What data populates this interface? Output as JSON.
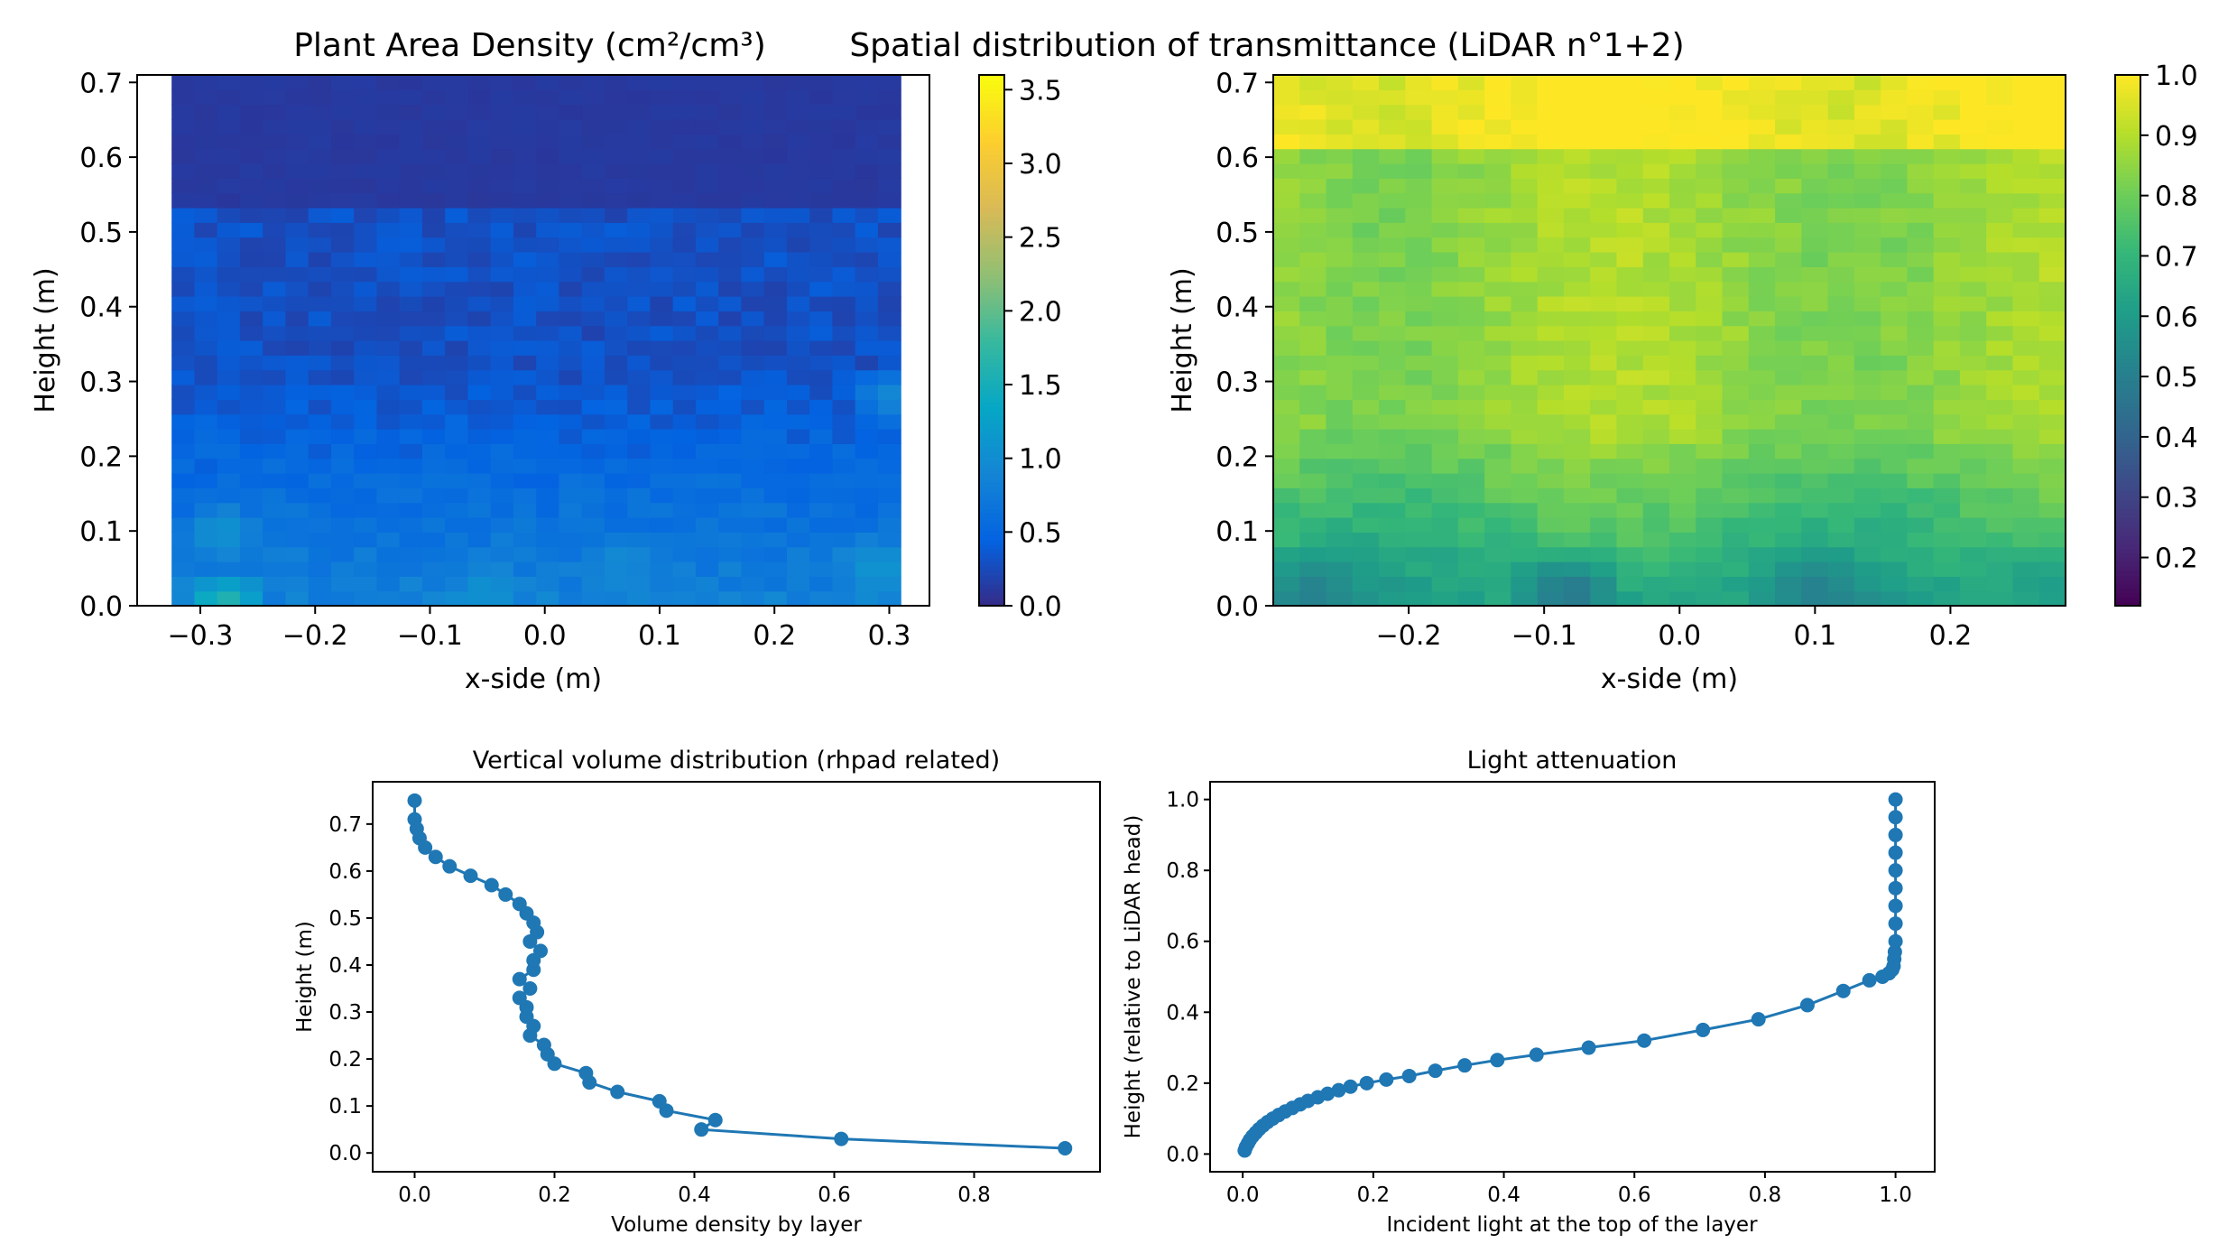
{
  "figure": {
    "description_free": true
  },
  "chart_data": [
    {
      "type": "heatmap",
      "title": "Plant Area Density (cm²/cm³)",
      "xlabel": "x-side (m)",
      "ylabel": "Height (m)",
      "xlim": [
        -0.355,
        0.335
      ],
      "ylim": [
        0.0,
        0.71
      ],
      "data_extent_x": [
        -0.325,
        0.31
      ],
      "data_extent_y": [
        0.0,
        0.71
      ],
      "grid": {
        "cols": 32,
        "rows": 36
      },
      "xticks": [
        -0.3,
        -0.2,
        -0.1,
        0.0,
        0.1,
        0.2,
        0.3
      ],
      "xtick_labels": [
        "−0.3",
        "−0.2",
        "−0.1",
        "0.0",
        "0.1",
        "0.2",
        "0.3"
      ],
      "yticks": [
        0.0,
        0.1,
        0.2,
        0.3,
        0.4,
        0.5,
        0.6,
        0.7
      ],
      "ytick_labels": [
        "0.0",
        "0.1",
        "0.2",
        "0.3",
        "0.4",
        "0.5",
        "0.6",
        "0.7"
      ],
      "colorbar": {
        "colormap": "parula",
        "range": [
          0.0,
          3.6
        ],
        "ticks": [
          0.0,
          0.5,
          1.0,
          1.5,
          2.0,
          2.5,
          3.0,
          3.5
        ],
        "tick_labels": [
          "0.0",
          "0.5",
          "1.0",
          "1.5",
          "2.0",
          "2.5",
          "3.0",
          "3.5"
        ]
      },
      "value_profile": {
        "top_value": 0.12,
        "mid_value": 0.3,
        "bottom_value": 0.85,
        "hotspots": [
          {
            "x": -0.28,
            "y": 0.005,
            "value": 1.7
          },
          {
            "x": -0.28,
            "y": 0.1,
            "value": 1.1
          },
          {
            "x": 0.29,
            "y": 0.05,
            "value": 1.2
          },
          {
            "x": 0.3,
            "y": 0.28,
            "value": 1.0
          },
          {
            "x": 0.07,
            "y": 0.06,
            "value": 1.0
          },
          {
            "x": -0.05,
            "y": 0.02,
            "value": 1.1
          }
        ]
      }
    },
    {
      "type": "heatmap",
      "title": "Spatial distribution of transmittance (LiDAR n°1+2)",
      "xlabel": "x-side (m)",
      "ylabel": "Height (m)",
      "xlim": [
        -0.3,
        0.285
      ],
      "ylim": [
        0.0,
        0.71
      ],
      "grid": {
        "cols": 30,
        "rows": 36
      },
      "xticks": [
        -0.2,
        -0.1,
        0.0,
        0.1,
        0.2
      ],
      "xtick_labels": [
        "−0.2",
        "−0.1",
        "0.0",
        "0.1",
        "0.2"
      ],
      "yticks": [
        0.0,
        0.1,
        0.2,
        0.3,
        0.4,
        0.5,
        0.6,
        0.7
      ],
      "ytick_labels": [
        "0.0",
        "0.1",
        "0.2",
        "0.3",
        "0.4",
        "0.5",
        "0.6",
        "0.7"
      ],
      "colorbar": {
        "colormap": "viridis",
        "range": [
          0.12,
          1.0
        ],
        "ticks": [
          0.2,
          0.3,
          0.4,
          0.5,
          0.6,
          0.7,
          0.8,
          0.9,
          1.0
        ],
        "tick_labels": [
          "0.2",
          "0.3",
          "0.4",
          "0.5",
          "0.6",
          "0.7",
          "0.8",
          "0.9",
          "1.0"
        ]
      },
      "value_profile": {
        "top_value": 0.99,
        "mid_value": 0.86,
        "bottom_value": 0.62,
        "lowspots": [
          {
            "x": -0.27,
            "y": 0.02,
            "value": 0.5
          },
          {
            "x": -0.08,
            "y": 0.02,
            "value": 0.45
          },
          {
            "x": 0.1,
            "y": 0.02,
            "value": 0.5
          },
          {
            "x": 0.27,
            "y": 0.03,
            "value": 0.6
          }
        ]
      }
    },
    {
      "type": "line",
      "title": "Vertical volume distribution (rhpad related)",
      "xlabel": "Volume density by layer",
      "ylabel": "Height (m)",
      "xlim": [
        -0.06,
        0.98
      ],
      "ylim": [
        -0.04,
        0.79
      ],
      "xticks": [
        0.0,
        0.2,
        0.4,
        0.6,
        0.8
      ],
      "xtick_labels": [
        "0.0",
        "0.2",
        "0.4",
        "0.6",
        "0.8"
      ],
      "yticks": [
        0.0,
        0.1,
        0.2,
        0.3,
        0.4,
        0.5,
        0.6,
        0.7
      ],
      "ytick_labels": [
        "0.0",
        "0.1",
        "0.2",
        "0.3",
        "0.4",
        "0.5",
        "0.6",
        "0.7"
      ],
      "series": [
        {
          "name": "volume density",
          "color": "#1f77b4",
          "x": [
            0.93,
            0.61,
            0.41,
            0.43,
            0.36,
            0.35,
            0.29,
            0.25,
            0.245,
            0.2,
            0.19,
            0.185,
            0.165,
            0.17,
            0.16,
            0.16,
            0.15,
            0.165,
            0.15,
            0.17,
            0.17,
            0.18,
            0.165,
            0.175,
            0.17,
            0.16,
            0.15,
            0.13,
            0.11,
            0.08,
            0.05,
            0.03,
            0.015,
            0.007,
            0.003,
            0.0,
            0.0
          ],
          "y": [
            0.01,
            0.03,
            0.05,
            0.07,
            0.09,
            0.11,
            0.13,
            0.15,
            0.17,
            0.19,
            0.21,
            0.23,
            0.25,
            0.27,
            0.29,
            0.31,
            0.33,
            0.35,
            0.37,
            0.39,
            0.41,
            0.43,
            0.45,
            0.47,
            0.49,
            0.51,
            0.53,
            0.55,
            0.57,
            0.59,
            0.61,
            0.63,
            0.65,
            0.67,
            0.69,
            0.71,
            0.75
          ]
        }
      ]
    },
    {
      "type": "line",
      "title": "Light attenuation",
      "xlabel": "Incident light at the top of the layer",
      "ylabel": "Height (relative to LiDAR head)",
      "xlim": [
        -0.05,
        1.06
      ],
      "ylim": [
        -0.05,
        1.05
      ],
      "xticks": [
        0.0,
        0.2,
        0.4,
        0.6,
        0.8,
        1.0
      ],
      "xtick_labels": [
        "0.0",
        "0.2",
        "0.4",
        "0.6",
        "0.8",
        "1.0"
      ],
      "yticks": [
        0.0,
        0.2,
        0.4,
        0.6,
        0.8,
        1.0
      ],
      "ytick_labels": [
        "0.0",
        "0.2",
        "0.4",
        "0.6",
        "0.8",
        "1.0"
      ],
      "series": [
        {
          "name": "incident light",
          "color": "#1f77b4",
          "x": [
            0.003,
            0.005,
            0.008,
            0.011,
            0.015,
            0.02,
            0.025,
            0.031,
            0.038,
            0.046,
            0.055,
            0.065,
            0.076,
            0.088,
            0.1,
            0.115,
            0.13,
            0.147,
            0.165,
            0.19,
            0.22,
            0.255,
            0.295,
            0.34,
            0.39,
            0.45,
            0.53,
            0.615,
            0.705,
            0.79,
            0.865,
            0.92,
            0.96,
            0.98,
            0.99,
            0.995,
            0.997,
            0.998,
            0.999,
            1.0,
            1.0,
            1.0,
            1.0,
            1.0,
            1.0,
            1.0,
            1.0,
            1.0
          ],
          "y": [
            0.01,
            0.02,
            0.03,
            0.04,
            0.05,
            0.06,
            0.07,
            0.08,
            0.09,
            0.1,
            0.11,
            0.12,
            0.13,
            0.14,
            0.15,
            0.16,
            0.17,
            0.18,
            0.19,
            0.2,
            0.21,
            0.22,
            0.235,
            0.25,
            0.265,
            0.28,
            0.3,
            0.32,
            0.35,
            0.38,
            0.42,
            0.46,
            0.49,
            0.5,
            0.51,
            0.52,
            0.53,
            0.55,
            0.57,
            0.6,
            0.65,
            0.7,
            0.75,
            0.8,
            0.85,
            0.9,
            0.95,
            1.0
          ]
        }
      ]
    }
  ]
}
